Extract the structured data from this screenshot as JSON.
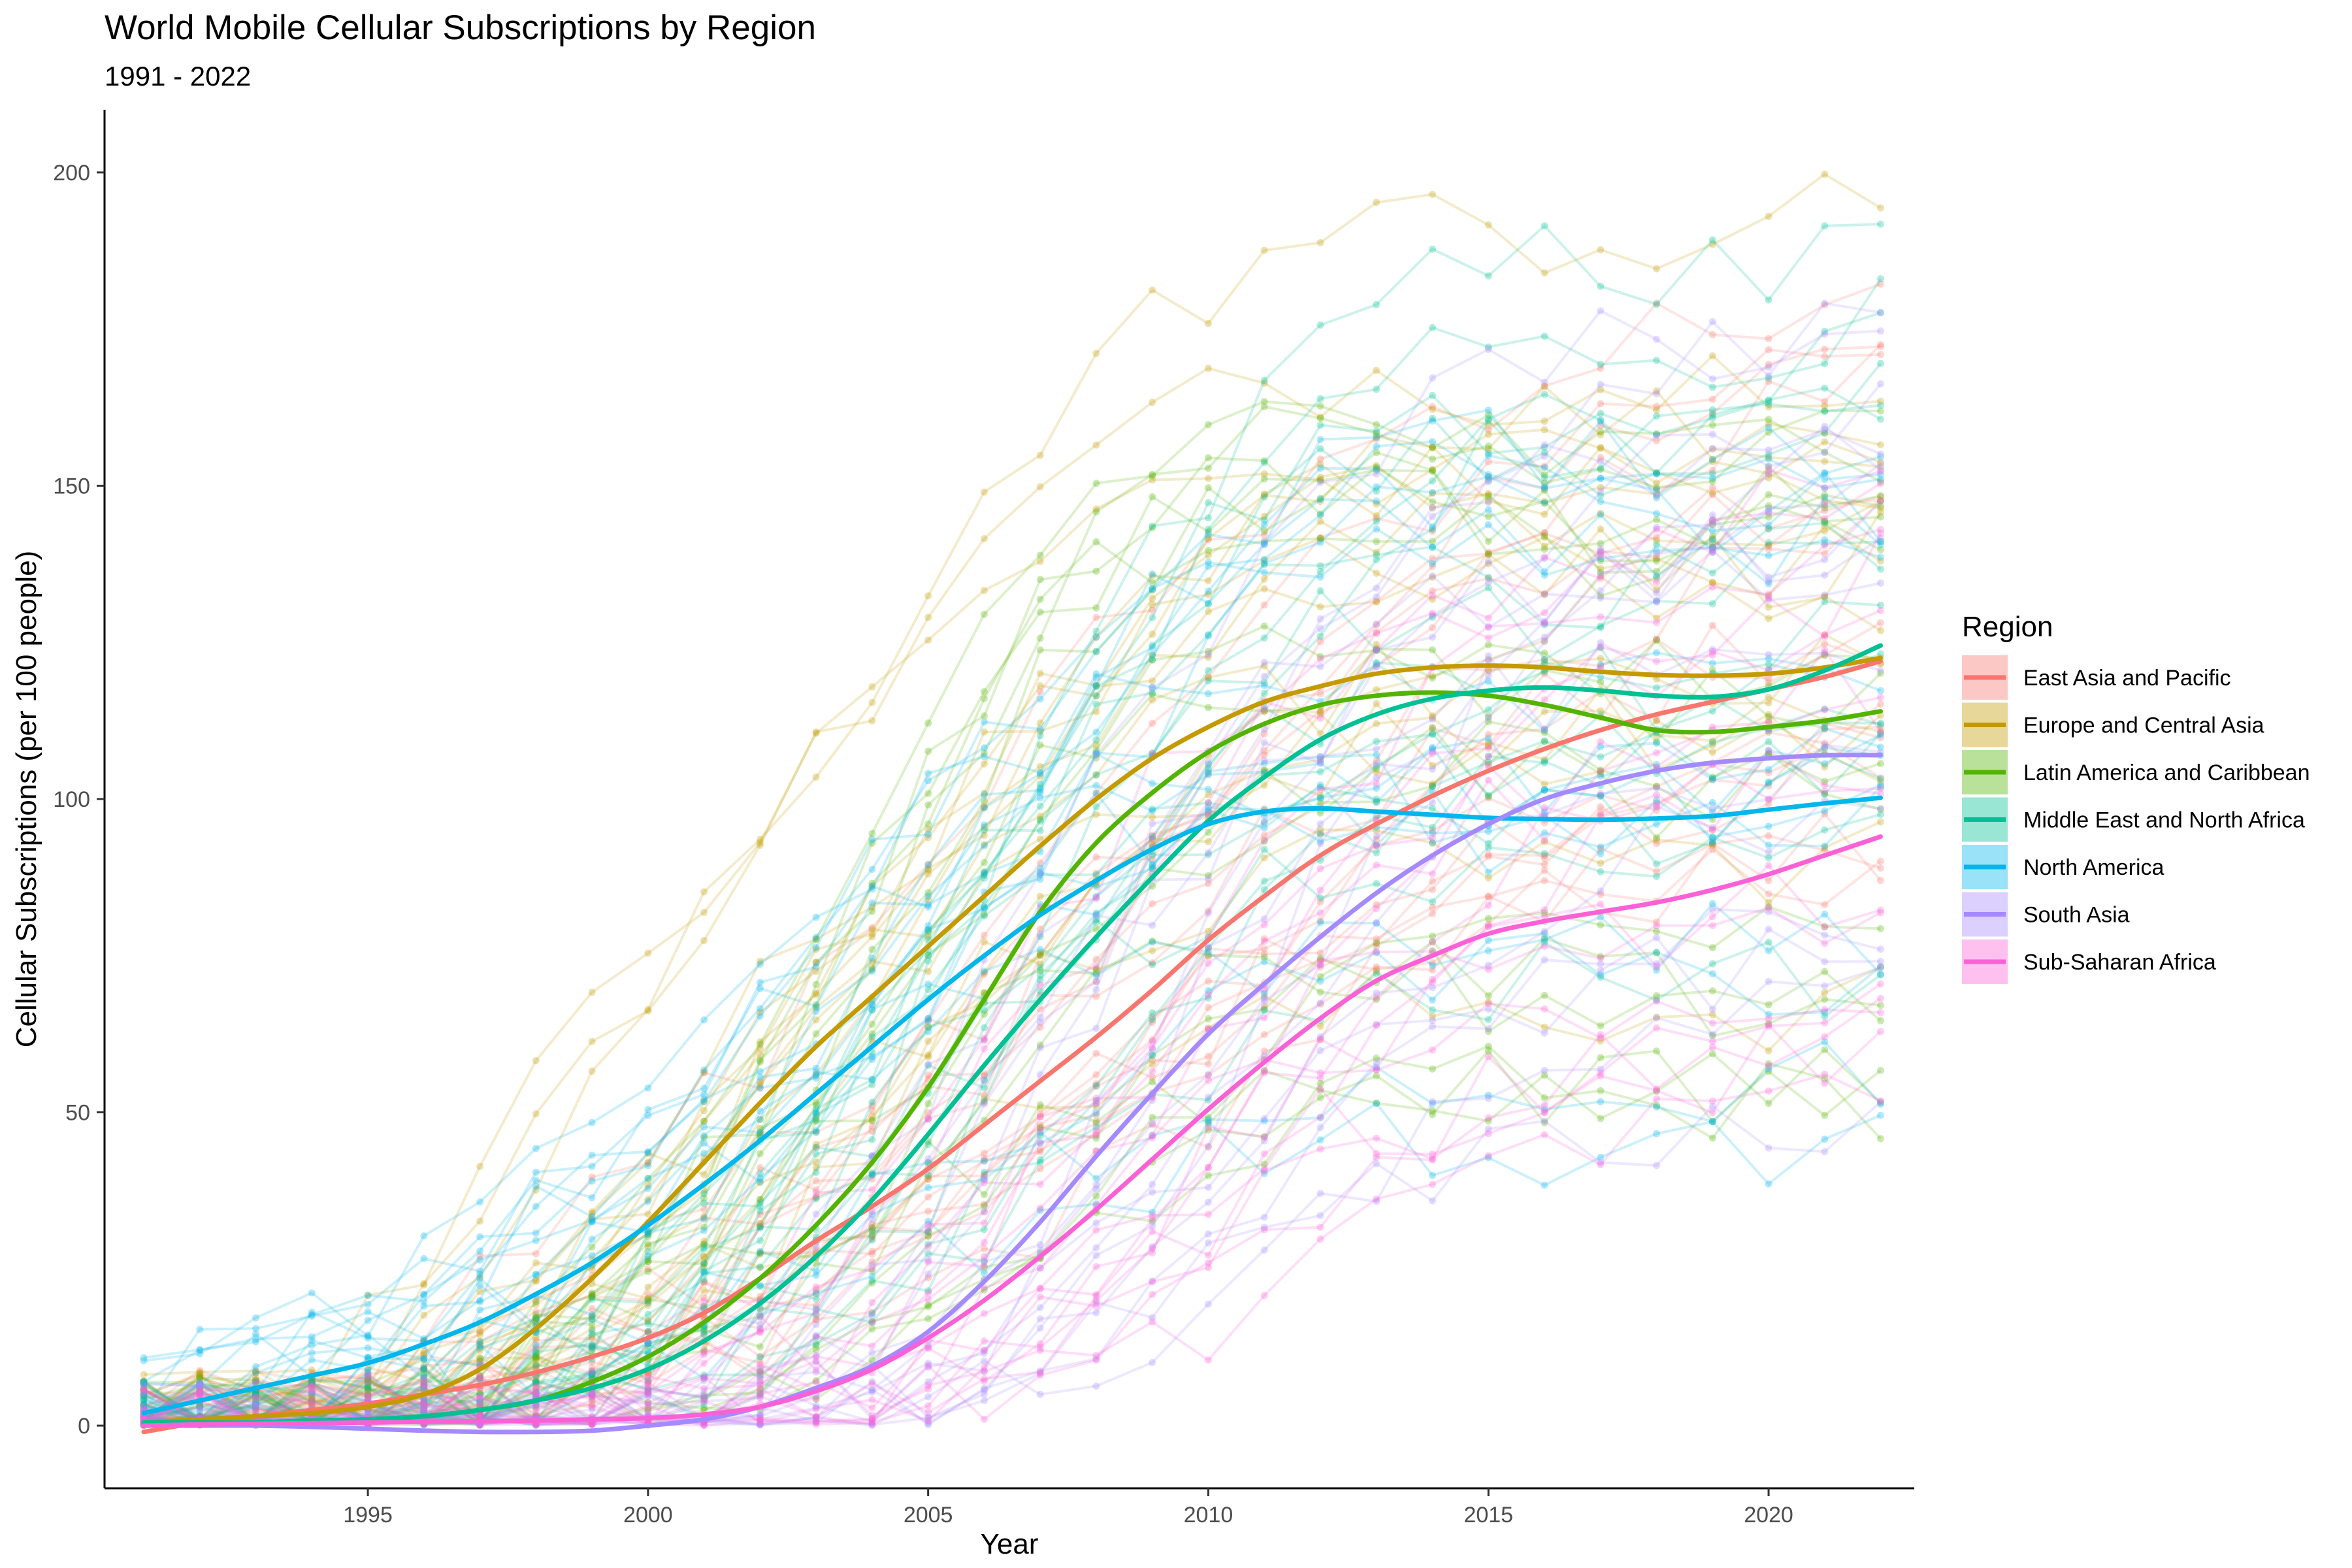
{
  "chart_data": {
    "type": "line",
    "title": "World Mobile Cellular Subscriptions by Region",
    "subtitle": "1991 - 2022",
    "xlabel": "Year",
    "ylabel": "Cellular Subscriptions (per 100 people)",
    "xlim": [
      1990.3,
      2022.6
    ],
    "ylim": [
      -10,
      210
    ],
    "x_ticks": [
      1995,
      2000,
      2005,
      2010,
      2015,
      2020
    ],
    "y_ticks": [
      0,
      50,
      100,
      150,
      200
    ],
    "grid": false,
    "legend": {
      "title": "Region",
      "position": "right"
    },
    "x": [
      1991,
      1992,
      1993,
      1994,
      1995,
      1996,
      1997,
      1998,
      1999,
      2000,
      2001,
      2002,
      2003,
      2004,
      2005,
      2006,
      2007,
      2008,
      2009,
      2010,
      2011,
      2012,
      2013,
      2014,
      2015,
      2016,
      2017,
      2018,
      2019,
      2020,
      2021,
      2022
    ],
    "series": [
      {
        "name": "East Asia and Pacific",
        "color": "#F8766D",
        "values": [
          -1,
          0.5,
          1.5,
          2.5,
          3.5,
          5,
          6.5,
          8.5,
          11,
          14,
          18,
          23.5,
          29.5,
          35,
          41,
          48,
          55,
          62,
          69.5,
          77.5,
          84.5,
          91,
          96,
          100.5,
          104.5,
          108,
          111,
          113.5,
          115.5,
          117.5,
          119.5,
          122
        ]
      },
      {
        "name": "Europe and Central Asia",
        "color": "#C49A00",
        "values": [
          0.5,
          1,
          1.5,
          2,
          3,
          5,
          9,
          15.5,
          23.5,
          32.5,
          42,
          51.5,
          60.5,
          68.5,
          76.5,
          84.5,
          92.5,
          100,
          106.5,
          111.5,
          115.5,
          118,
          120,
          121,
          121.3,
          121,
          120.3,
          119.8,
          119.7,
          120,
          121,
          122.5
        ]
      },
      {
        "name": "Latin America and Caribbean",
        "color": "#53B400",
        "values": [
          0.5,
          0.5,
          0.5,
          0.8,
          1,
          1.5,
          2.5,
          4,
          7,
          11,
          16.5,
          23.5,
          32,
          42,
          54,
          68,
          82,
          93,
          101,
          107.5,
          112,
          115,
          116.5,
          117,
          116.5,
          115,
          113,
          111,
          110.7,
          111.5,
          112.5,
          114
        ]
      },
      {
        "name": "Middle East and North Africa",
        "color": "#00C094",
        "values": [
          0.5,
          0.5,
          0.5,
          0.8,
          1,
          1.5,
          2.5,
          4,
          6,
          9,
          13.5,
          19.5,
          27,
          36,
          46.5,
          57.5,
          68,
          78,
          87.5,
          96.5,
          103.5,
          109.5,
          113.5,
          116,
          117.3,
          117.8,
          117.3,
          116.5,
          116.3,
          117.5,
          120.5,
          124.5
        ]
      },
      {
        "name": "North America",
        "color": "#00B6EB",
        "values": [
          2,
          4,
          6,
          8,
          10,
          13,
          16.5,
          21,
          26,
          32,
          38.5,
          45.5,
          53,
          60.5,
          68,
          75,
          81.5,
          87,
          92,
          96,
          98,
          98.5,
          98,
          97.5,
          97,
          96.8,
          96.7,
          96.9,
          97.3,
          98.3,
          99.3,
          100.2
        ]
      },
      {
        "name": "South Asia",
        "color": "#A58AFF",
        "values": [
          0,
          0,
          0,
          -0.2,
          -0.5,
          -0.8,
          -1,
          -1,
          -0.8,
          0,
          1,
          3,
          6,
          9.5,
          15,
          23,
          32.5,
          43,
          53,
          62.5,
          70.5,
          78,
          85,
          91,
          96,
          100,
          102.5,
          104.5,
          105.8,
          106.5,
          107,
          107
        ]
      },
      {
        "name": "Sub-Saharan Africa",
        "color": "#FB61D7",
        "values": [
          0,
          0.2,
          0.3,
          0.4,
          0.5,
          0.6,
          0.7,
          0.8,
          1,
          1.2,
          1.8,
          3,
          5.5,
          9,
          14,
          20,
          27,
          34.5,
          42.5,
          50.5,
          58,
          65,
          71,
          75,
          78.5,
          80.5,
          82,
          83.5,
          85.5,
          88,
          91,
          94
        ]
      }
    ]
  }
}
